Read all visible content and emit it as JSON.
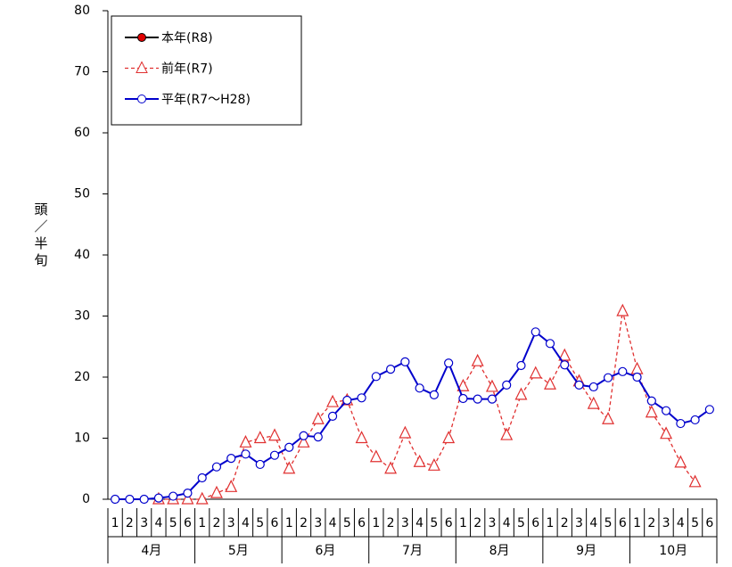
{
  "chart_data": {
    "type": "line",
    "y_label": "頭／半旬",
    "categories": [
      "1",
      "2",
      "3",
      "4",
      "5",
      "6",
      "1",
      "2",
      "3",
      "4",
      "5",
      "6",
      "1",
      "2",
      "3",
      "4",
      "5",
      "6",
      "1",
      "2",
      "3",
      "4",
      "5",
      "6",
      "1",
      "2",
      "3",
      "4",
      "5",
      "6",
      "1",
      "2",
      "3",
      "4",
      "5",
      "6",
      "1",
      "2",
      "3",
      "4",
      "5",
      "6"
    ],
    "months": [
      "4月",
      "5月",
      "6月",
      "7月",
      "8月",
      "9月",
      "10月"
    ],
    "ylim": [
      0,
      80
    ],
    "yticks": [
      0,
      10,
      20,
      30,
      40,
      50,
      60,
      70,
      80
    ],
    "series": [
      {
        "name": "本年(R8)",
        "color": "#000000",
        "marker_color": "#e00000",
        "marker": "circle",
        "dashed": false,
        "values": [
          null,
          null,
          null,
          null,
          null,
          null,
          null,
          null,
          null,
          null,
          null,
          null,
          null,
          null,
          null,
          null,
          null,
          null,
          null,
          null,
          null,
          null,
          null,
          null,
          null,
          null,
          null,
          null,
          null,
          null,
          null,
          null,
          null,
          null,
          null,
          null,
          null,
          null,
          null,
          null,
          null,
          null
        ]
      },
      {
        "name": "前年(R7)",
        "color": "#e03030",
        "marker_color": "#ffffff",
        "marker": "triangle",
        "dashed": true,
        "values": [
          null,
          null,
          null,
          0,
          0,
          0,
          0,
          1,
          2,
          9.3,
          10,
          10.4,
          5,
          9.3,
          13.1,
          15.9,
          16.2,
          10,
          6.9,
          5,
          10.8,
          6.1,
          5.5,
          10,
          18.5,
          22.6,
          18.4,
          10.5,
          17.1,
          20.6,
          18.8,
          23.5,
          19.3,
          15.6,
          13.1,
          30.8,
          21.3,
          14.2,
          10.7,
          6,
          2.8,
          null
        ]
      },
      {
        "name": "平年(R7～H28)",
        "color": "#0000cc",
        "marker_color": "#ffffff",
        "marker": "circle",
        "dashed": false,
        "values": [
          0,
          0,
          0,
          0.2,
          0.5,
          1,
          3.5,
          5.3,
          6.7,
          7.4,
          5.7,
          7.2,
          8.5,
          10.4,
          10.2,
          13.6,
          16.2,
          16.6,
          20.1,
          21.3,
          22.5,
          18.2,
          17.1,
          22.3,
          16.5,
          16.4,
          16.4,
          18.7,
          21.9,
          27.4,
          25.5,
          22,
          18.7,
          18.4,
          19.9,
          20.9,
          20,
          16.1,
          14.5,
          12.4,
          13,
          14.7
        ]
      }
    ]
  }
}
